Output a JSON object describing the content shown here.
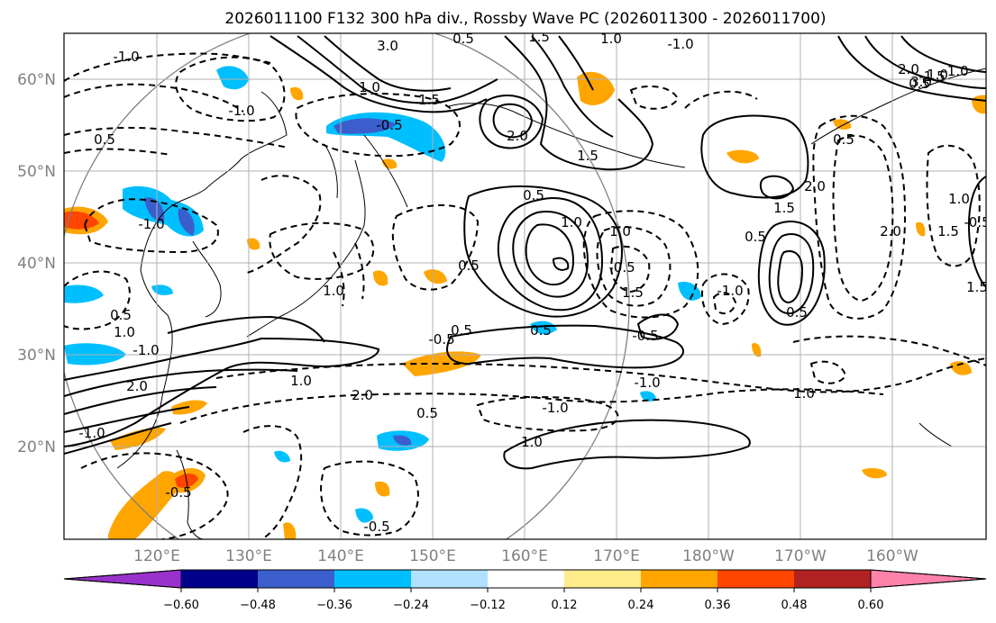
{
  "title": "2026011100 F132 300 hPa div., Rossby Wave PC (2026011300 - 2026011700)",
  "map": {
    "lon_labels": [
      "120°E",
      "130°E",
      "140°E",
      "150°E",
      "160°E",
      "170°E",
      "180°W",
      "170°W",
      "160°W"
    ],
    "lat_labels": [
      "60°N",
      "50°N",
      "40°N",
      "30°N",
      "20°N"
    ],
    "gridlines": true,
    "contour_labels": [
      "-1.0",
      "-1.0",
      "0.5",
      "3.0",
      "0.5",
      "1.5",
      "1.0",
      "-1.0",
      "-0.5",
      "2.0",
      "1.5",
      "1.5",
      "1.0",
      "2.0",
      "3.0",
      "0.5",
      "1.0",
      "-0.5",
      "0.5",
      "1.0",
      "1.5",
      "2.0",
      "1.0",
      "1.5",
      "-1.0",
      "0.5",
      "-0.5",
      "-1.0",
      "2.0",
      "0.5",
      "0.5",
      "-1.0",
      "-0.5",
      "1.5",
      "0.5",
      "1.0",
      "0.5",
      "2.0",
      "1.0",
      "-1.0",
      "2.0",
      "-1.0",
      "-0.5",
      "1.0",
      "1.0",
      "-0.5",
      "1.0",
      "0.5",
      "0.5",
      "-1.0",
      "1.5",
      "-0.5",
      "0.5",
      "-1.5",
      "1.0",
      "-1.0"
    ]
  },
  "colorbar": {
    "colors": [
      "#9932cc",
      "#00008b",
      "#3a5fcd",
      "#00bfff",
      "#b0e2ff",
      "#ffffff",
      "#ffec8b",
      "#ffa500",
      "#ff4500",
      "#b22222",
      "#ff82ab"
    ],
    "tick_labels": [
      "−0.60",
      "−0.48",
      "−0.36",
      "−0.24",
      "−0.12",
      "0.12",
      "0.24",
      "0.36",
      "0.48",
      "0.60"
    ]
  }
}
